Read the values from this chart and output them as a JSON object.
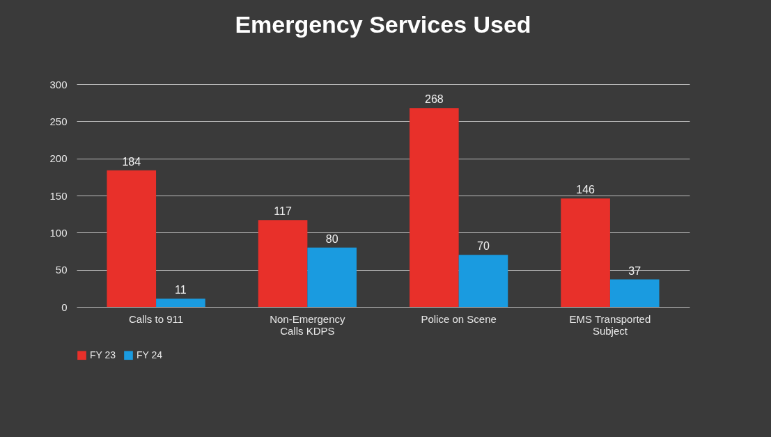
{
  "chart_data": {
    "type": "bar",
    "title": "Emergency Services Used",
    "categories": [
      "Calls to 911",
      "Non-Emergency Calls KDPS",
      "Police on Scene",
      "EMS Transported Subject"
    ],
    "series": [
      {
        "name": "FY 23",
        "color": "#e8302a",
        "values": [
          184,
          117,
          268,
          146
        ]
      },
      {
        "name": "FY 24",
        "color": "#1a9be0",
        "values": [
          11,
          80,
          70,
          37
        ]
      }
    ],
    "ylim": [
      0,
      300
    ],
    "yticks": [
      0,
      50,
      100,
      150,
      200,
      250,
      300
    ],
    "grid": "y",
    "legend": "bottom",
    "data_labels": true
  }
}
